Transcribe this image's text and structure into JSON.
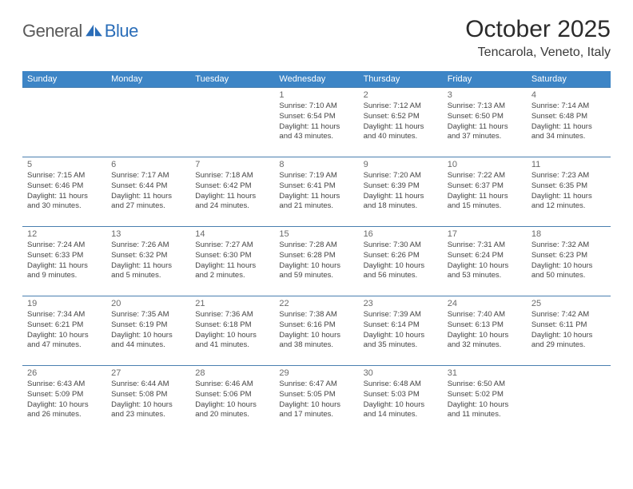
{
  "brand": {
    "part1": "General",
    "part2": "Blue"
  },
  "title": "October 2025",
  "location": "Tencarola, Veneto, Italy",
  "header_bg": "#3d85c6",
  "row_border": "#4a7fb0",
  "day_headers": [
    "Sunday",
    "Monday",
    "Tuesday",
    "Wednesday",
    "Thursday",
    "Friday",
    "Saturday"
  ],
  "weeks": [
    [
      null,
      null,
      null,
      {
        "d": "1",
        "sr": "7:10 AM",
        "ss": "6:54 PM",
        "dh": 11,
        "dm": 43
      },
      {
        "d": "2",
        "sr": "7:12 AM",
        "ss": "6:52 PM",
        "dh": 11,
        "dm": 40
      },
      {
        "d": "3",
        "sr": "7:13 AM",
        "ss": "6:50 PM",
        "dh": 11,
        "dm": 37
      },
      {
        "d": "4",
        "sr": "7:14 AM",
        "ss": "6:48 PM",
        "dh": 11,
        "dm": 34
      }
    ],
    [
      {
        "d": "5",
        "sr": "7:15 AM",
        "ss": "6:46 PM",
        "dh": 11,
        "dm": 30
      },
      {
        "d": "6",
        "sr": "7:17 AM",
        "ss": "6:44 PM",
        "dh": 11,
        "dm": 27
      },
      {
        "d": "7",
        "sr": "7:18 AM",
        "ss": "6:42 PM",
        "dh": 11,
        "dm": 24
      },
      {
        "d": "8",
        "sr": "7:19 AM",
        "ss": "6:41 PM",
        "dh": 11,
        "dm": 21
      },
      {
        "d": "9",
        "sr": "7:20 AM",
        "ss": "6:39 PM",
        "dh": 11,
        "dm": 18
      },
      {
        "d": "10",
        "sr": "7:22 AM",
        "ss": "6:37 PM",
        "dh": 11,
        "dm": 15
      },
      {
        "d": "11",
        "sr": "7:23 AM",
        "ss": "6:35 PM",
        "dh": 11,
        "dm": 12
      }
    ],
    [
      {
        "d": "12",
        "sr": "7:24 AM",
        "ss": "6:33 PM",
        "dh": 11,
        "dm": 9
      },
      {
        "d": "13",
        "sr": "7:26 AM",
        "ss": "6:32 PM",
        "dh": 11,
        "dm": 5
      },
      {
        "d": "14",
        "sr": "7:27 AM",
        "ss": "6:30 PM",
        "dh": 11,
        "dm": 2
      },
      {
        "d": "15",
        "sr": "7:28 AM",
        "ss": "6:28 PM",
        "dh": 10,
        "dm": 59
      },
      {
        "d": "16",
        "sr": "7:30 AM",
        "ss": "6:26 PM",
        "dh": 10,
        "dm": 56
      },
      {
        "d": "17",
        "sr": "7:31 AM",
        "ss": "6:24 PM",
        "dh": 10,
        "dm": 53
      },
      {
        "d": "18",
        "sr": "7:32 AM",
        "ss": "6:23 PM",
        "dh": 10,
        "dm": 50
      }
    ],
    [
      {
        "d": "19",
        "sr": "7:34 AM",
        "ss": "6:21 PM",
        "dh": 10,
        "dm": 47
      },
      {
        "d": "20",
        "sr": "7:35 AM",
        "ss": "6:19 PM",
        "dh": 10,
        "dm": 44
      },
      {
        "d": "21",
        "sr": "7:36 AM",
        "ss": "6:18 PM",
        "dh": 10,
        "dm": 41
      },
      {
        "d": "22",
        "sr": "7:38 AM",
        "ss": "6:16 PM",
        "dh": 10,
        "dm": 38
      },
      {
        "d": "23",
        "sr": "7:39 AM",
        "ss": "6:14 PM",
        "dh": 10,
        "dm": 35
      },
      {
        "d": "24",
        "sr": "7:40 AM",
        "ss": "6:13 PM",
        "dh": 10,
        "dm": 32
      },
      {
        "d": "25",
        "sr": "7:42 AM",
        "ss": "6:11 PM",
        "dh": 10,
        "dm": 29
      }
    ],
    [
      {
        "d": "26",
        "sr": "6:43 AM",
        "ss": "5:09 PM",
        "dh": 10,
        "dm": 26
      },
      {
        "d": "27",
        "sr": "6:44 AM",
        "ss": "5:08 PM",
        "dh": 10,
        "dm": 23
      },
      {
        "d": "28",
        "sr": "6:46 AM",
        "ss": "5:06 PM",
        "dh": 10,
        "dm": 20
      },
      {
        "d": "29",
        "sr": "6:47 AM",
        "ss": "5:05 PM",
        "dh": 10,
        "dm": 17
      },
      {
        "d": "30",
        "sr": "6:48 AM",
        "ss": "5:03 PM",
        "dh": 10,
        "dm": 14
      },
      {
        "d": "31",
        "sr": "6:50 AM",
        "ss": "5:02 PM",
        "dh": 10,
        "dm": 11
      },
      null
    ]
  ],
  "labels": {
    "sunrise": "Sunrise:",
    "sunset": "Sunset:",
    "daylight": "Daylight:",
    "hours": "hours",
    "and": "and",
    "minutes": "minutes."
  }
}
